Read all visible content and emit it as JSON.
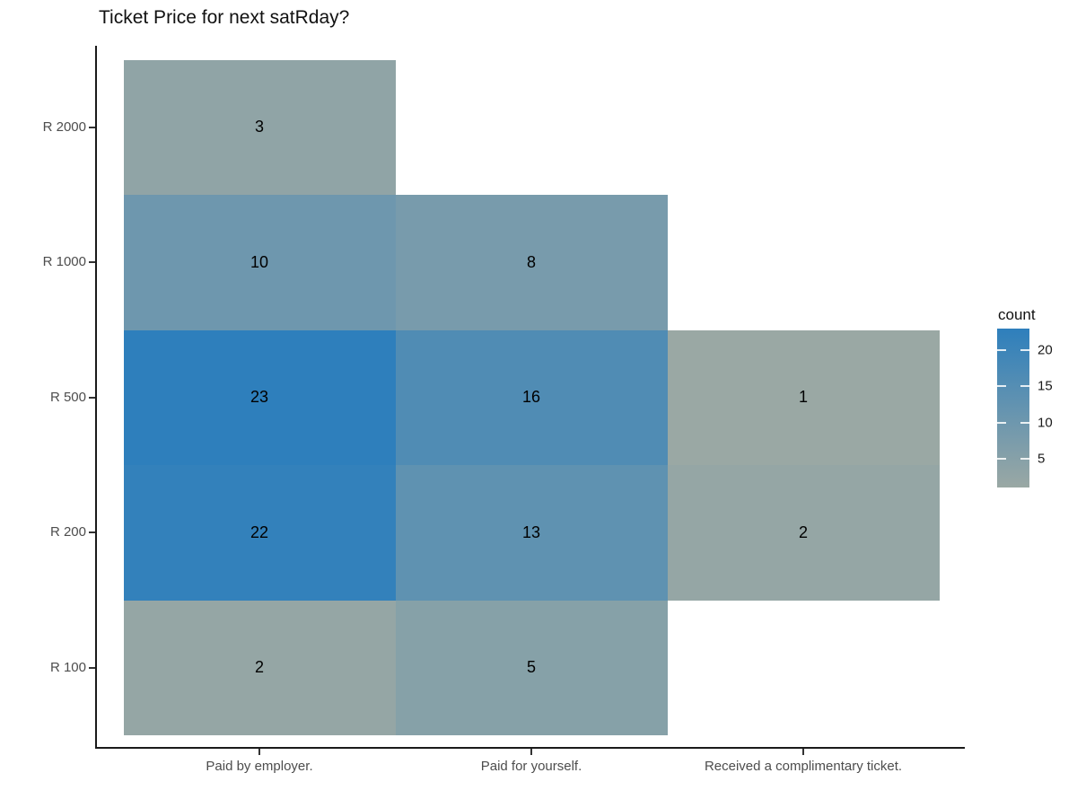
{
  "title": "Ticket Price for next satRday?",
  "chart_data": {
    "type": "heatmap",
    "title": "Ticket Price for next satRday?",
    "x_categories": [
      "Paid by employer.",
      "Paid for yourself.",
      "Received a complimentary ticket."
    ],
    "y_categories_top_to_bottom": [
      "R 2000",
      "R 1000",
      "R 500",
      "R 200",
      "R 100"
    ],
    "cells": [
      {
        "x": "Paid by employer.",
        "y": "R 2000",
        "count": 3
      },
      {
        "x": "Paid by employer.",
        "y": "R 1000",
        "count": 10
      },
      {
        "x": "Paid for yourself.",
        "y": "R 1000",
        "count": 8
      },
      {
        "x": "Paid by employer.",
        "y": "R 500",
        "count": 23
      },
      {
        "x": "Paid for yourself.",
        "y": "R 500",
        "count": 16
      },
      {
        "x": "Received a complimentary ticket.",
        "y": "R 500",
        "count": 1
      },
      {
        "x": "Paid by employer.",
        "y": "R 200",
        "count": 22
      },
      {
        "x": "Paid for yourself.",
        "y": "R 200",
        "count": 13
      },
      {
        "x": "Received a complimentary ticket.",
        "y": "R 200",
        "count": 2
      },
      {
        "x": "Paid by employer.",
        "y": "R 100",
        "count": 2
      },
      {
        "x": "Paid for yourself.",
        "y": "R 100",
        "count": 5
      }
    ],
    "legend": {
      "title": "count",
      "position": "right",
      "ticks": [
        20,
        15,
        10,
        5
      ],
      "range": [
        1,
        23
      ],
      "low_color": "#9aa8a4",
      "high_color": "#2e7fbc"
    },
    "grid": false,
    "colors": {
      "background": "#ffffff",
      "axis_line": "#1a1a1a",
      "axis_text": "#4d4d4d",
      "cell_text": "#000000"
    }
  }
}
